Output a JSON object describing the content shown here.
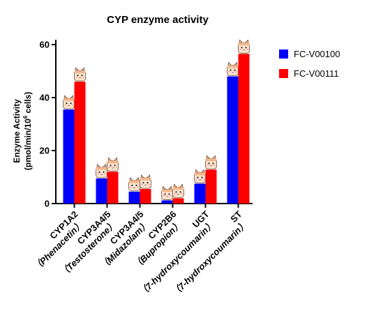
{
  "chart_data": {
    "type": "bar",
    "title": "CYP enzyme activity",
    "ylabel_line1": "Enzyme Activity",
    "ylabel_line2_prefix": "(pmol/min/10",
    "ylabel_line2_sup": "6",
    "ylabel_line2_suffix": " cells)",
    "xlabel": "",
    "ylim": [
      0,
      62
    ],
    "yticks": [
      0,
      20,
      40,
      60
    ],
    "grid": false,
    "legend_position": "top-right",
    "categories": [
      [
        "CYP1A2",
        "（Phenacetin）"
      ],
      [
        "CYP3A4/5",
        "（Testosterone）"
      ],
      [
        "CYP3A4/5",
        "（Midazolam）"
      ],
      [
        "CYP2B6",
        "（Bupropion）"
      ],
      [
        "UGT",
        "（7-hydroxycoumarin）"
      ],
      [
        "ST",
        "（7-hydroxycoumarin）"
      ]
    ],
    "series": [
      {
        "name": "FC-V00100",
        "color": "#0000FF",
        "values": [
          35.5,
          9.5,
          4.5,
          1.2,
          7.5,
          48.0
        ]
      },
      {
        "name": "FC-V00111",
        "color": "#FF0000",
        "values": [
          46.0,
          12.0,
          5.5,
          2.0,
          12.8,
          56.5
        ]
      }
    ],
    "bar_decoration": "cat-face-icon"
  }
}
